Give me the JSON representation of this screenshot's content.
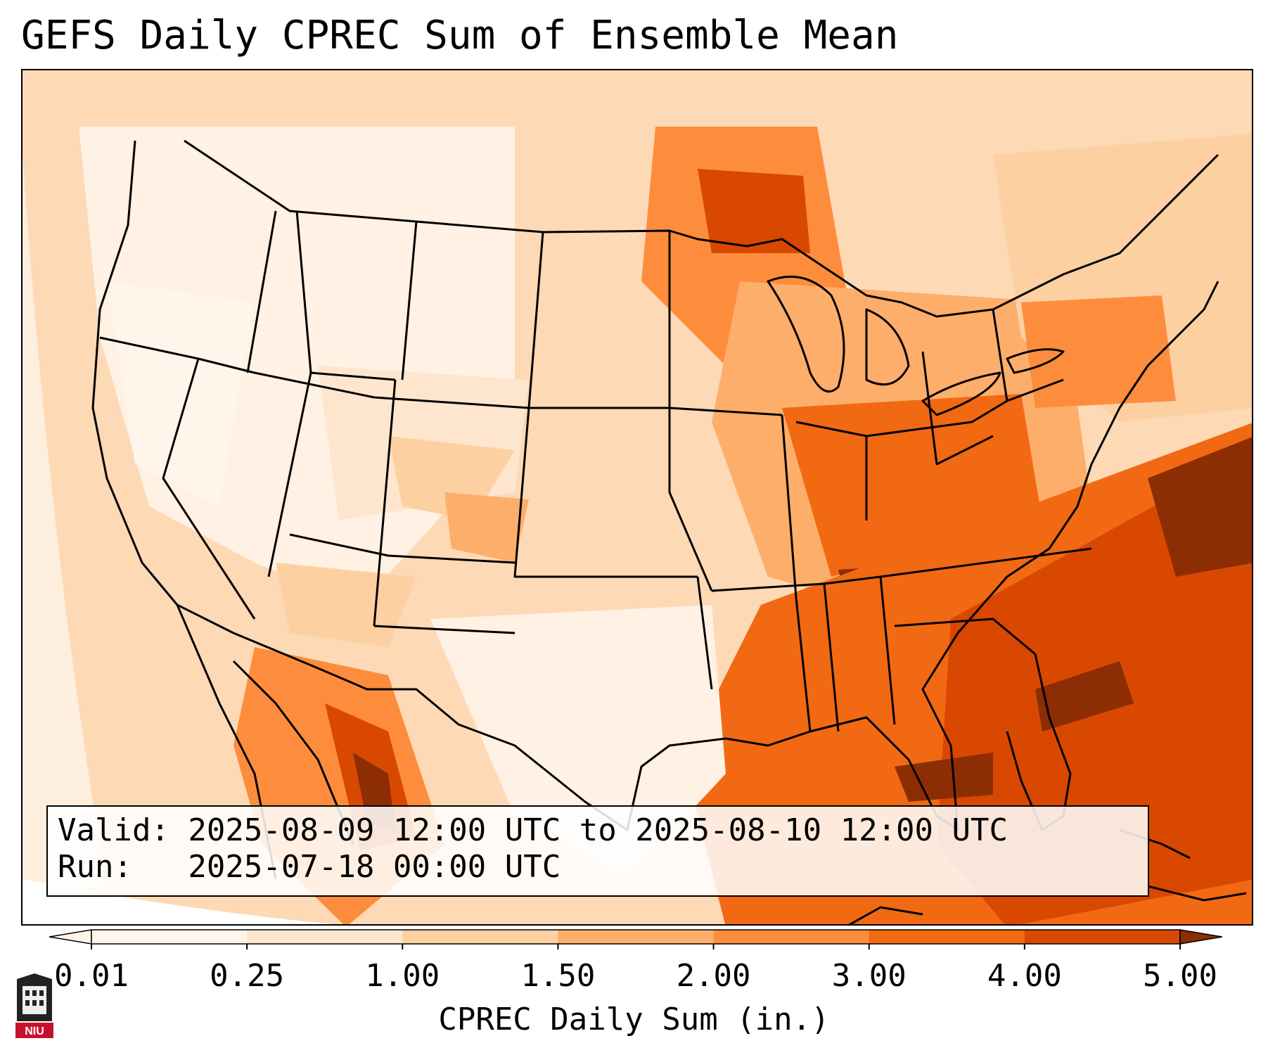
{
  "title": "GEFS Daily CPREC Sum of Ensemble Mean",
  "valid_line": "Valid: 2025-08-09 12:00 UTC to 2025-08-10 12:00 UTC",
  "run_line": "Run:   2025-07-18 00:00 UTC",
  "colorbar": {
    "label": "CPREC Daily Sum (in.)",
    "ticks": [
      "0.01",
      "0.25",
      "1.00",
      "1.50",
      "2.00",
      "3.00",
      "4.00",
      "5.00"
    ],
    "colors": [
      "#fff5eb",
      "#fee6ce",
      "#fdd0a2",
      "#fdae6b",
      "#fd8d3c",
      "#f16913",
      "#d94801",
      "#8c2d04"
    ],
    "extend": "both"
  },
  "logo": {
    "text": "NIU",
    "icon": "niu-logo-icon"
  },
  "map": {
    "projection": "lambert-conformal",
    "region": "Continental United States",
    "field_colormap": "Oranges",
    "coastline_color": "#000000",
    "background_color": "#ffffff"
  }
}
